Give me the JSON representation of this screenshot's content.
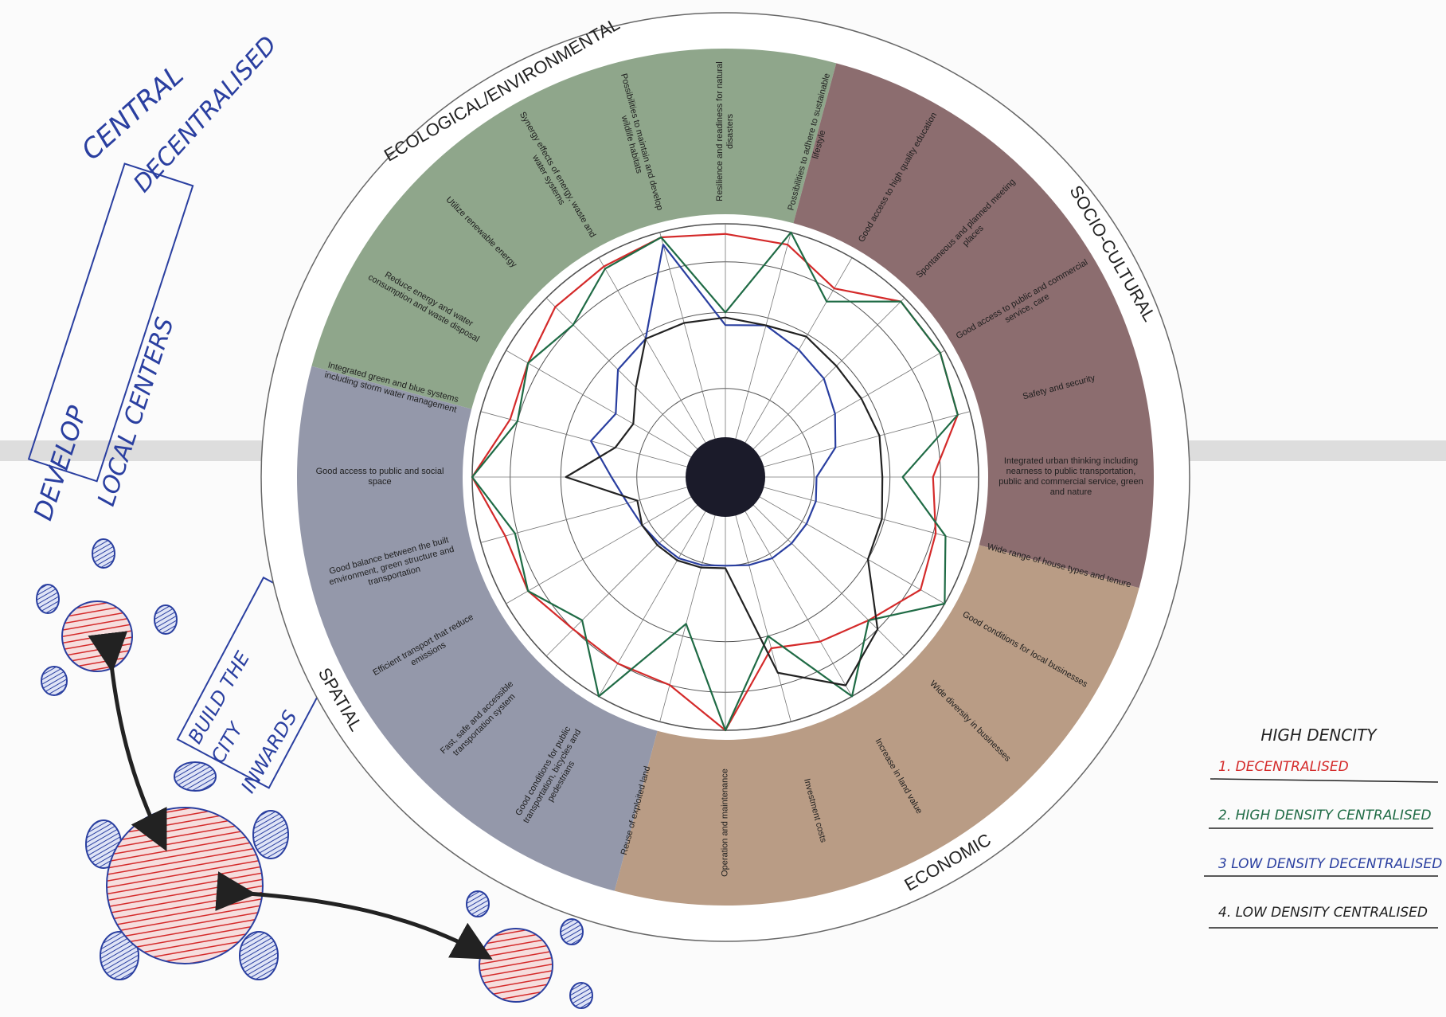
{
  "chart_data": {
    "type": "radar",
    "annotations": [
      "CENTRAL",
      "DECENTRALISED",
      "DEVELOP",
      "LOCAL CENTERS",
      "BUILD THE",
      "CITY",
      "INWARDS"
    ],
    "sectors": [
      {
        "name": "ECOLOGICAL/ENVIRONMENTAL",
        "color": "#8fa68b"
      },
      {
        "name": "SOCIO-CULTURAL",
        "color": "#8c6d6f"
      },
      {
        "name": "ECONOMIC",
        "color": "#b99c85"
      },
      {
        "name": "SPATIAL",
        "color": "#9498aa"
      }
    ],
    "categories": [
      "Resilience and readiness for natural disasters",
      "Possibilities to adhere to sustainable lifestyle",
      "Good access to high quality education",
      "Spontaneous and planned meeting places",
      "Good access to public and commercial service, care",
      "Safety and security",
      "Integrated urban thinking including nearness to public transportation, public and commercial service, green and nature",
      "Wide range of house types and tenure",
      "Good conditions for local businesses",
      "Wide diversity in businesses",
      "Increase in land value",
      "Investment costs",
      "Operation and maintenance",
      "Reuse of exploited land",
      "Good conditions for public transportation, bicycles and pedestrians",
      "Fast, safe and accessible transportation system",
      "Efficient transport that reduce emissions",
      "Good balance between the built environment, green structure and transportation",
      "Good access to public and social space",
      "Integrated green and blue systems including storm water management",
      "Reduce energy and water consumption and waste disposal",
      "Utilize renewable energy",
      "Synergy effects of energy, waste and water systems",
      "Possibilities to maintain and develop wildlife habitats"
    ],
    "rlim": [
      0,
      10
    ],
    "rticks": [
      3.5,
      6.5,
      8.5,
      10
    ],
    "legend_title": "HIGH DENCITY",
    "series": [
      {
        "name": "1. DECENTRALISED",
        "color": "#d42a2a",
        "values": [
          9.6,
          9.5,
          8.6,
          9.8,
          9.8,
          9.5,
          8.2,
          8.6,
          8.9,
          8.0,
          7.5,
          7.0,
          10,
          8.5,
          8.5,
          8.5,
          9.0,
          9.0,
          10,
          8.8,
          9.0,
          9.5,
          9.6,
          9.8
        ]
      },
      {
        "name": "2. HIGH DENSITY CENTRALISED",
        "color": "#1f6b45",
        "values": [
          6.5,
          10,
          8.0,
          9.8,
          9.8,
          9.5,
          7.0,
          9.0,
          10,
          8.0,
          10,
          6.5,
          10,
          6.0,
          10,
          8.0,
          9.0,
          8.6,
          10,
          8.5,
          9.0,
          8.5,
          9.5,
          9.8
        ]
      },
      {
        "name": "3 LOW DENSITY DECENTRALISED",
        "color": "#2a3fa0",
        "values": [
          6.0,
          6.2,
          5.8,
          5.5,
          5.0,
          4.5,
          3.6,
          3.7,
          3.7,
          3.7,
          3.7,
          3.6,
          3.5,
          3.6,
          3.7,
          3.7,
          3.8,
          4.0,
          4.5,
          5.5,
          5.0,
          6.0,
          6.3,
          9.5
        ]
      },
      {
        "name": "4. LOW DENSITY CENTRALISED",
        "color": "#222222",
        "values": [
          6.3,
          6.2,
          6.4,
          6.2,
          6.2,
          6.3,
          6.2,
          6.4,
          6.5,
          8.5,
          9.5,
          8.0,
          3.6,
          3.7,
          3.8,
          3.8,
          3.8,
          3.6,
          6.3,
          4.5,
          4.2,
          5.0,
          6.3,
          6.3
        ]
      }
    ]
  }
}
